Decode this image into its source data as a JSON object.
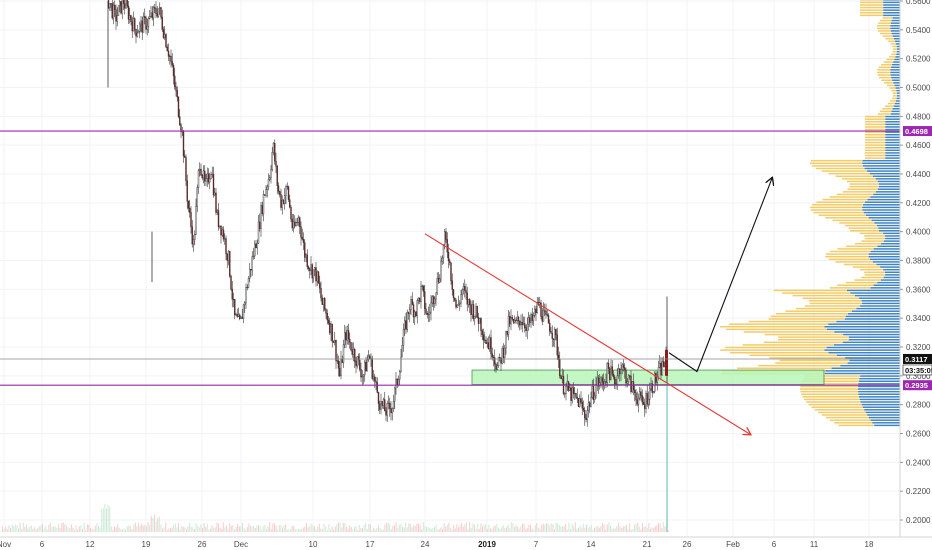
{
  "chart_data": {
    "type": "candlestick",
    "y_axis": {
      "position": "right",
      "ylim": [
        0.19,
        0.565
      ],
      "ticks": [
        "0.5600",
        "0.5400",
        "0.5200",
        "0.5000",
        "0.4800",
        "0.4600",
        "0.4400",
        "0.4200",
        "0.4000",
        "0.3800",
        "0.3600",
        "0.3400",
        "0.3200",
        "0.3000",
        "0.2800",
        "0.2600",
        "0.2400",
        "0.2200",
        "0.2000"
      ]
    },
    "x_axis": {
      "ticks": [
        {
          "label": "Nov",
          "bold": false
        },
        {
          "label": "6",
          "bold": false
        },
        {
          "label": "12",
          "bold": false
        },
        {
          "label": "19",
          "bold": false
        },
        {
          "label": "26",
          "bold": false
        },
        {
          "label": "Dec",
          "bold": false
        },
        {
          "label": "10",
          "bold": false
        },
        {
          "label": "17",
          "bold": false
        },
        {
          "label": "24",
          "bold": false
        },
        {
          "label": "2019",
          "bold": true
        },
        {
          "label": "7",
          "bold": false
        },
        {
          "label": "14",
          "bold": false
        },
        {
          "label": "21",
          "bold": false
        },
        {
          "label": "26",
          "bold": false
        },
        {
          "label": "Feb",
          "bold": false
        },
        {
          "label": "6",
          "bold": false
        },
        {
          "label": "11",
          "bold": false
        },
        {
          "label": "18",
          "bold": false
        }
      ]
    },
    "horizontal_lines": [
      {
        "value": 0.4698,
        "color": "#9c27b0",
        "label": "0.4698"
      },
      {
        "value": 0.2935,
        "color": "#9c27b0",
        "label": "0.2935"
      },
      {
        "value": 0.3117,
        "color": "#888888",
        "label": "0.3117"
      }
    ],
    "countdown_label": "03:35:05",
    "price_path": [
      [
        0,
        0.565
      ],
      [
        0.8,
        0.548
      ],
      [
        1.5,
        0.56
      ],
      [
        2.5,
        0.54
      ],
      [
        3.5,
        0.545
      ],
      [
        4.5,
        0.555
      ],
      [
        5.5,
        0.52
      ],
      [
        6.5,
        0.47
      ],
      [
        7.0,
        0.42
      ],
      [
        7.5,
        0.39
      ],
      [
        8,
        0.45
      ],
      [
        8.5,
        0.43
      ],
      [
        9,
        0.445
      ],
      [
        9.5,
        0.41
      ],
      [
        10,
        0.4
      ],
      [
        10.5,
        0.38
      ],
      [
        11,
        0.34
      ],
      [
        11.5,
        0.335
      ],
      [
        12,
        0.36
      ],
      [
        12.5,
        0.38
      ],
      [
        13,
        0.4
      ],
      [
        13.5,
        0.425
      ],
      [
        14,
        0.44
      ],
      [
        14.3,
        0.46
      ],
      [
        14.7,
        0.43
      ],
      [
        15,
        0.42
      ],
      [
        15.5,
        0.43
      ],
      [
        16,
        0.4
      ],
      [
        16.5,
        0.41
      ],
      [
        17,
        0.385
      ],
      [
        17.5,
        0.375
      ],
      [
        18,
        0.37
      ],
      [
        18.5,
        0.35
      ],
      [
        19,
        0.34
      ],
      [
        19.5,
        0.325
      ],
      [
        20,
        0.3
      ],
      [
        20.5,
        0.33
      ],
      [
        21,
        0.32
      ],
      [
        21.5,
        0.31
      ],
      [
        22,
        0.3
      ],
      [
        22.5,
        0.315
      ],
      [
        23,
        0.295
      ],
      [
        23.5,
        0.28
      ],
      [
        24,
        0.275
      ],
      [
        24.5,
        0.28
      ],
      [
        25,
        0.3
      ],
      [
        25.5,
        0.33
      ],
      [
        26,
        0.35
      ],
      [
        26.5,
        0.345
      ],
      [
        27,
        0.36
      ],
      [
        27.5,
        0.34
      ],
      [
        28,
        0.355
      ],
      [
        28.5,
        0.37
      ],
      [
        29,
        0.395
      ],
      [
        29.3,
        0.385
      ],
      [
        29.6,
        0.365
      ],
      [
        30,
        0.345
      ],
      [
        30.5,
        0.36
      ],
      [
        31,
        0.35
      ],
      [
        31.5,
        0.345
      ],
      [
        32,
        0.338
      ],
      [
        32.5,
        0.325
      ],
      [
        33,
        0.32
      ],
      [
        33.5,
        0.305
      ],
      [
        34,
        0.318
      ],
      [
        34.5,
        0.338
      ],
      [
        35,
        0.335
      ],
      [
        35.5,
        0.34
      ],
      [
        36,
        0.335
      ],
      [
        36.5,
        0.338
      ],
      [
        37,
        0.35
      ],
      [
        37.5,
        0.34
      ],
      [
        38,
        0.335
      ],
      [
        38.5,
        0.325
      ],
      [
        39,
        0.295
      ],
      [
        39.5,
        0.29
      ],
      [
        40,
        0.285
      ],
      [
        40.5,
        0.282
      ],
      [
        41,
        0.272
      ],
      [
        41.5,
        0.285
      ],
      [
        42,
        0.295
      ],
      [
        42.5,
        0.295
      ],
      [
        43,
        0.305
      ],
      [
        43.5,
        0.295
      ],
      [
        44,
        0.308
      ],
      [
        44.5,
        0.3
      ],
      [
        45,
        0.292
      ],
      [
        45.5,
        0.285
      ],
      [
        46,
        0.28
      ],
      [
        46.5,
        0.29
      ],
      [
        47,
        0.297
      ],
      [
        47.5,
        0.305
      ],
      [
        48,
        0.312
      ]
    ],
    "resistance_line": {
      "from": [
        0.4,
        0.4
      ],
      "to": [
        0.802,
        0.2595
      ],
      "color": "#e53935"
    },
    "projection_arrow": [
      [
        0.718,
        0.315
      ],
      [
        0.748,
        0.305
      ],
      [
        0.83,
        0.437
      ]
    ],
    "support_zone": {
      "ymin": 0.294,
      "ymax": 0.304,
      "color": "#b9f6b9"
    }
  }
}
